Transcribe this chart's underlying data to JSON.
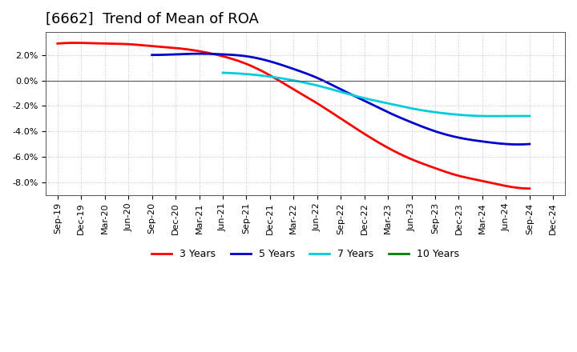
{
  "title": "[6662]  Trend of Mean of ROA",
  "x_labels": [
    "Sep-19",
    "Dec-19",
    "Mar-20",
    "Jun-20",
    "Sep-20",
    "Dec-20",
    "Mar-21",
    "Jun-21",
    "Sep-21",
    "Dec-21",
    "Mar-22",
    "Jun-22",
    "Sep-22",
    "Dec-22",
    "Mar-23",
    "Jun-23",
    "Sep-23",
    "Dec-23",
    "Mar-24",
    "Jun-24",
    "Sep-24",
    "Dec-24"
  ],
  "series_3y": [
    0.029,
    0.0295,
    0.029,
    0.0285,
    0.027,
    0.0255,
    0.023,
    0.019,
    0.013,
    0.004,
    -0.007,
    -0.018,
    -0.03,
    -0.042,
    -0.053,
    -0.062,
    -0.069,
    -0.075,
    -0.079,
    -0.083,
    -0.085,
    null
  ],
  "series_5y": [
    null,
    null,
    null,
    null,
    0.02,
    0.0205,
    0.021,
    0.0205,
    0.019,
    0.015,
    0.009,
    0.002,
    -0.007,
    -0.016,
    -0.025,
    -0.033,
    -0.04,
    -0.045,
    -0.048,
    -0.05,
    -0.05,
    null
  ],
  "series_7y": [
    null,
    null,
    null,
    null,
    null,
    null,
    null,
    0.006,
    0.005,
    0.003,
    0.0,
    -0.004,
    -0.009,
    -0.014,
    -0.018,
    -0.022,
    -0.025,
    -0.027,
    -0.028,
    -0.028,
    -0.028,
    null
  ],
  "series_10y": [
    null,
    null,
    null,
    null,
    null,
    null,
    null,
    null,
    null,
    null,
    null,
    null,
    null,
    null,
    null,
    null,
    null,
    null,
    null,
    null,
    null,
    null
  ],
  "color_3y": "#FF0000",
  "color_5y": "#0000CC",
  "color_7y": "#00CCDD",
  "color_10y": "#008000",
  "legend_labels": [
    "3 Years",
    "5 Years",
    "7 Years",
    "10 Years"
  ],
  "legend_colors": [
    "#FF0000",
    "#0000CC",
    "#00CCDD",
    "#008000"
  ],
  "ylim": [
    -0.09,
    0.038
  ],
  "yticks": [
    -0.08,
    -0.06,
    -0.04,
    -0.02,
    0.0,
    0.02
  ],
  "ytick_labels": [
    "-8.0%",
    "-6.0%",
    "-4.0%",
    "-2.0%",
    "0.0%",
    "2.0%"
  ],
  "background_color": "#FFFFFF",
  "grid_color": "#999999",
  "title_fontsize": 13,
  "tick_fontsize": 8
}
